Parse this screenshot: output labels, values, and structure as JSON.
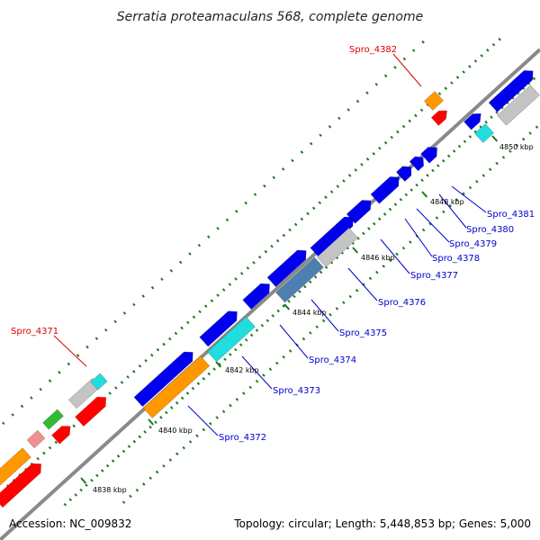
{
  "title": "Serratia proteamaculans 568, complete genome",
  "accession": "Accession: NC_009832",
  "summary": "Topology: circular; Length: 5,448,853 bp; Genes: 5,000",
  "colors": {
    "backbone": "#808080",
    "tick": "#1a7a1a",
    "forward_gene": "#0000ee",
    "reverse_gene": "#ff0000",
    "cds_orange": "#ff9800",
    "cds_cyan": "#22dddd",
    "cds_gray": "#c4c4c4",
    "cds_steel": "#4d7fb0",
    "cds_pink": "#f09090",
    "cds_green": "#33bb33",
    "label_blue": "#0000cc",
    "label_red": "#dd0000"
  },
  "scale_labels": [
    "4838 kbp",
    "4840 kbp",
    "4842 kbp",
    "4844 kbp",
    "4846 kbp",
    "4848 kbp",
    "4850 kbp"
  ],
  "gene_labels_blue": [
    "Spro_4372",
    "Spro_4373",
    "Spro_4374",
    "Spro_4375",
    "Spro_4376",
    "Spro_4377",
    "Spro_4378",
    "Spro_4379",
    "Spro_4380",
    "Spro_4381"
  ],
  "gene_labels_red": [
    "Spro_4371",
    "Spro_4382"
  ]
}
